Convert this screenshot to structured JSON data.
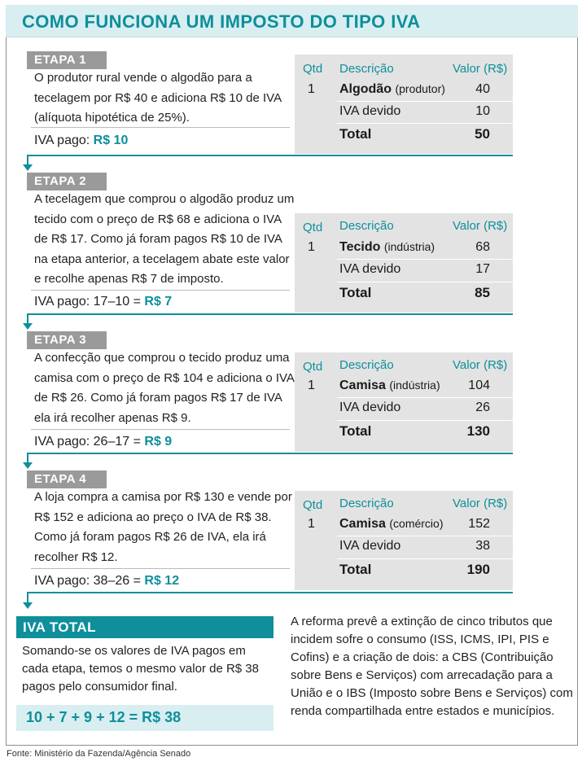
{
  "title": "COMO FUNCIONA UM IMPOSTO DO TIPO IVA",
  "table_headers": {
    "qty": "Qtd",
    "desc": "Descrição",
    "value": "Valor (R$)"
  },
  "stages": [
    {
      "label": "ETAPA 1",
      "text": "O produtor rural vende o algodão para a tecelagem por R$ 40 e adiciona R$ 10 de IVA (alíquota hipotética de 25%).",
      "iva_prefix": "IVA pago:",
      "iva_value": "R$ 10",
      "qty": "1",
      "item_name": "Algodão",
      "item_sector": "(produtor)",
      "item_value": "40",
      "iva_label": "IVA devido",
      "iva_due": "10",
      "total_label": "Total",
      "total": "50"
    },
    {
      "label": "ETAPA 2",
      "text": "A tecelagem que comprou o algodão produz um tecido com o preço de R$ 68 e adiciona o IVA de R$ 17. Como já foram pagos R$ 10 de IVA na etapa anterior, a tecelagem abate este valor e recolhe apenas R$ 7 de imposto.",
      "iva_prefix": "IVA pago: 17–10 =",
      "iva_value": "R$ 7",
      "qty": "1",
      "item_name": "Tecido",
      "item_sector": "(indústria)",
      "item_value": "68",
      "iva_label": "IVA devido",
      "iva_due": "17",
      "total_label": "Total",
      "total": "85"
    },
    {
      "label": "ETAPA 3",
      "text": "A confecção que comprou o tecido produz uma camisa com o preço de R$ 104 e adiciona o IVA de R$ 26. Como já foram pagos R$ 17 de IVA ela irá recolher apenas R$ 9.",
      "iva_prefix": "IVA pago: 26–17 =",
      "iva_value": "R$ 9",
      "qty": "1",
      "item_name": "Camisa",
      "item_sector": "(indústria)",
      "item_value": "104",
      "iva_label": "IVA devido",
      "iva_due": "26",
      "total_label": "Total",
      "total": "130"
    },
    {
      "label": "ETAPA 4",
      "text": "A loja compra a camisa por R$ 130 e vende por R$ 152 e adiciona ao preço o IVA de R$ 38. Como já foram pagos R$ 26 de IVA, ela irá recolher R$ 12.",
      "iva_prefix": "IVA pago: 38–26 =",
      "iva_value": "R$ 12",
      "qty": "1",
      "item_name": "Camisa",
      "item_sector": "(comércio)",
      "item_value": "152",
      "iva_label": "IVA devido",
      "iva_due": "38",
      "total_label": "Total",
      "total": "190"
    }
  ],
  "iva_total": {
    "label": "IVA TOTAL",
    "text": "Somando-se os valores de IVA pagos em cada etapa, temos o mesmo valor de R$ 38 pagos pelo consumidor final.",
    "sum": "10 + 7 + 9 + 12  = R$ 38"
  },
  "reform_text": "A reforma prevê a extinção de cinco tributos que incidem sofre o consumo (ISS, ICMS, IPI, PIS e Cofins) e a criação de dois: a CBS (Contribuição sobre Bens e Serviços) com arrecadação para a União e o IBS (Imposto sobre Bens e Serviços) com renda compartilhada entre estados e municípios.",
  "source": "Fonte: Ministério da Fazenda/Agência Senado",
  "colors": {
    "accent": "#0e8f9b",
    "light_accent": "#d8eef1",
    "stage_gray": "#9a9a9a",
    "table_gray": "#e3e3e3"
  }
}
